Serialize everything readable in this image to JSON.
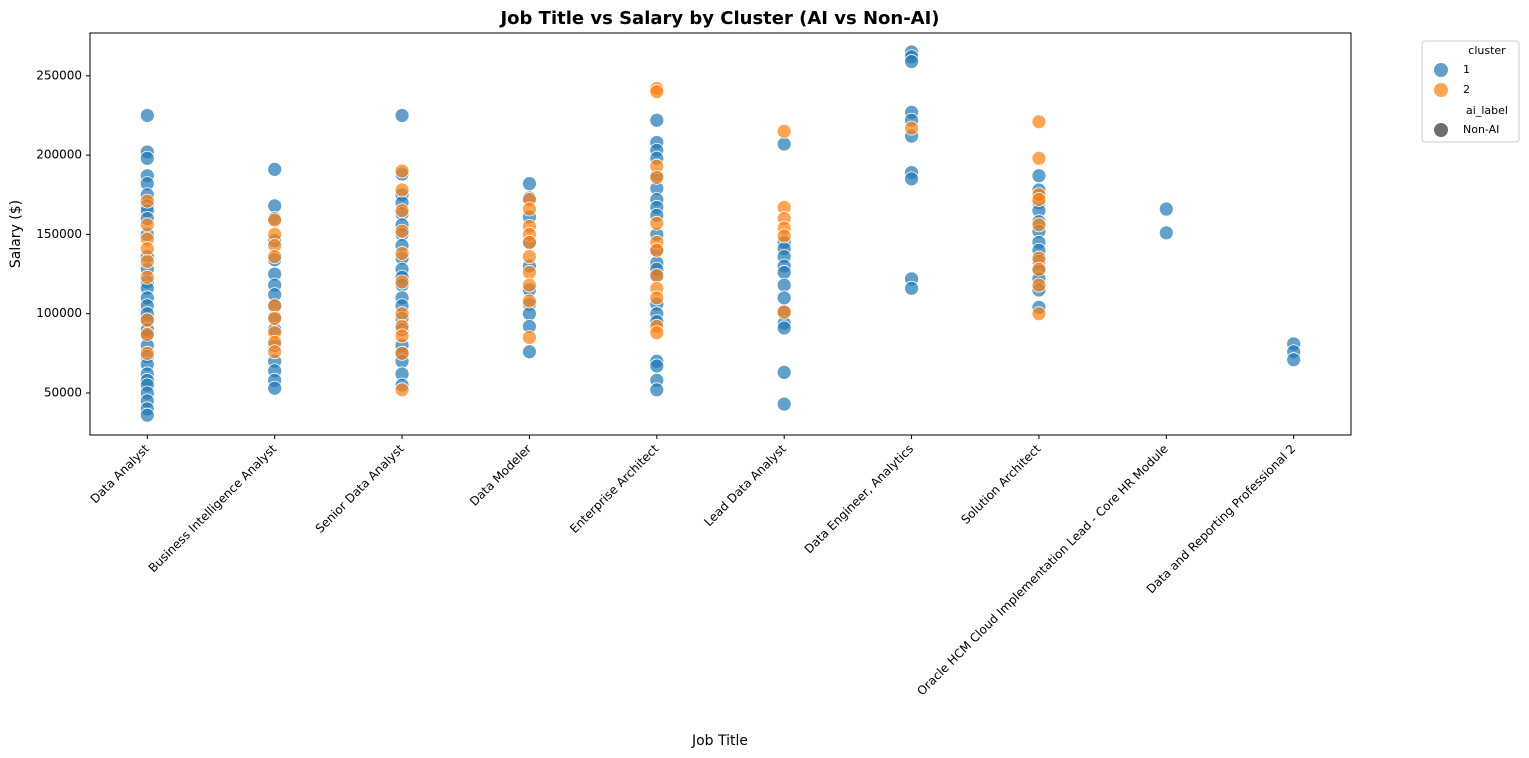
{
  "chart_data": {
    "type": "scatter",
    "title": "Job Title vs Salary by Cluster (AI vs Non-AI)",
    "x_label": "Job Title",
    "y_label": "Salary ($)",
    "categories": [
      "Data Analyst",
      "Business Intelligence Analyst",
      "Senior Data Analyst",
      "Data Modeler",
      "Enterprise Architect",
      "Lead Data Analyst",
      "Data Engineer, Analytics",
      "Solution Architect",
      "Oracle HCM Cloud Implementation Lead - Core HR Module",
      "Data and Reporting Professional 2"
    ],
    "ylim": [
      23500,
      277000
    ],
    "yticks": [
      50000,
      100000,
      150000,
      200000,
      250000
    ],
    "grid": false,
    "legend": {
      "position": "outside-upper-right",
      "hue_title": "cluster",
      "style_title": "ai_label",
      "style_entries": [
        "Non-AI"
      ],
      "style_color": "#6e6e6e"
    },
    "series": [
      {
        "name": "1",
        "color": "#1f77b4",
        "x": [
          "Data Analyst",
          "Data Analyst",
          "Data Analyst",
          "Data Analyst",
          "Data Analyst",
          "Data Analyst",
          "Data Analyst",
          "Data Analyst",
          "Data Analyst",
          "Data Analyst",
          "Data Analyst",
          "Data Analyst",
          "Data Analyst",
          "Data Analyst",
          "Data Analyst",
          "Data Analyst",
          "Data Analyst",
          "Data Analyst",
          "Data Analyst",
          "Data Analyst",
          "Data Analyst",
          "Data Analyst",
          "Data Analyst",
          "Data Analyst",
          "Data Analyst",
          "Data Analyst",
          "Data Analyst",
          "Data Analyst",
          "Data Analyst",
          "Data Analyst",
          "Business Intelligence Analyst",
          "Business Intelligence Analyst",
          "Business Intelligence Analyst",
          "Business Intelligence Analyst",
          "Business Intelligence Analyst",
          "Business Intelligence Analyst",
          "Business Intelligence Analyst",
          "Business Intelligence Analyst",
          "Business Intelligence Analyst",
          "Business Intelligence Analyst",
          "Business Intelligence Analyst",
          "Business Intelligence Analyst",
          "Business Intelligence Analyst",
          "Business Intelligence Analyst",
          "Business Intelligence Analyst",
          "Business Intelligence Analyst",
          "Senior Data Analyst",
          "Senior Data Analyst",
          "Senior Data Analyst",
          "Senior Data Analyst",
          "Senior Data Analyst",
          "Senior Data Analyst",
          "Senior Data Analyst",
          "Senior Data Analyst",
          "Senior Data Analyst",
          "Senior Data Analyst",
          "Senior Data Analyst",
          "Senior Data Analyst",
          "Senior Data Analyst",
          "Senior Data Analyst",
          "Senior Data Analyst",
          "Senior Data Analyst",
          "Senior Data Analyst",
          "Senior Data Analyst",
          "Senior Data Analyst",
          "Senior Data Analyst",
          "Senior Data Analyst",
          "Data Modeler",
          "Data Modeler",
          "Data Modeler",
          "Data Modeler",
          "Data Modeler",
          "Data Modeler",
          "Data Modeler",
          "Data Modeler",
          "Data Modeler",
          "Data Modeler",
          "Enterprise Architect",
          "Enterprise Architect",
          "Enterprise Architect",
          "Enterprise Architect",
          "Enterprise Architect",
          "Enterprise Architect",
          "Enterprise Architect",
          "Enterprise Architect",
          "Enterprise Architect",
          "Enterprise Architect",
          "Enterprise Architect",
          "Enterprise Architect",
          "Enterprise Architect",
          "Enterprise Architect",
          "Enterprise Architect",
          "Enterprise Architect",
          "Enterprise Architect",
          "Enterprise Architect",
          "Enterprise Architect",
          "Enterprise Architect",
          "Enterprise Architect",
          "Lead Data Analyst",
          "Lead Data Analyst",
          "Lead Data Analyst",
          "Lead Data Analyst",
          "Lead Data Analyst",
          "Lead Data Analyst",
          "Lead Data Analyst",
          "Lead Data Analyst",
          "Lead Data Analyst",
          "Lead Data Analyst",
          "Lead Data Analyst",
          "Lead Data Analyst",
          "Lead Data Analyst",
          "Data Engineer, Analytics",
          "Data Engineer, Analytics",
          "Data Engineer, Analytics",
          "Data Engineer, Analytics",
          "Data Engineer, Analytics",
          "Data Engineer, Analytics",
          "Data Engineer, Analytics",
          "Data Engineer, Analytics",
          "Data Engineer, Analytics",
          "Data Engineer, Analytics",
          "Solution Architect",
          "Solution Architect",
          "Solution Architect",
          "Solution Architect",
          "Solution Architect",
          "Solution Architect",
          "Solution Architect",
          "Solution Architect",
          "Solution Architect",
          "Solution Architect",
          "Solution Architect",
          "Solution Architect",
          "Solution Architect",
          "Oracle HCM Cloud Implementation Lead - Core HR Module",
          "Oracle HCM Cloud Implementation Lead - Core HR Module",
          "Data and Reporting Professional 2",
          "Data and Reporting Professional 2",
          "Data and Reporting Professional 2"
        ],
        "values": [
          225000,
          202000,
          198000,
          187000,
          182000,
          175000,
          168000,
          165000,
          160000,
          150000,
          136000,
          128000,
          120000,
          116000,
          110000,
          105000,
          100000,
          96000,
          90000,
          86000,
          80000,
          73000,
          68000,
          62000,
          58000,
          55000,
          50000,
          45000,
          40000,
          36000,
          191000,
          168000,
          160000,
          146000,
          134000,
          125000,
          118000,
          112000,
          105000,
          98000,
          90000,
          80000,
          70000,
          64000,
          58000,
          53000,
          225000,
          188000,
          175000,
          170000,
          163000,
          156000,
          150000,
          143000,
          135000,
          128000,
          123000,
          118000,
          110000,
          105000,
          97000,
          90000,
          80000,
          75000,
          70000,
          62000,
          55000,
          182000,
          173000,
          161000,
          145000,
          130000,
          115000,
          106000,
          100000,
          92000,
          76000,
          222000,
          208000,
          203000,
          198000,
          187000,
          179000,
          172000,
          167000,
          162000,
          150000,
          140000,
          132000,
          128000,
          124000,
          106000,
          100000,
          95000,
          70000,
          67000,
          58000,
          52000,
          207000,
          145000,
          141000,
          136000,
          130000,
          126000,
          118000,
          110000,
          101000,
          94000,
          91000,
          63000,
          43000,
          265000,
          262000,
          259000,
          227000,
          222000,
          212000,
          189000,
          185000,
          122000,
          116000,
          187000,
          178000,
          170000,
          165000,
          158000,
          152000,
          145000,
          140000,
          133000,
          127000,
          122000,
          115000,
          104000,
          166000,
          151000,
          81000,
          76000,
          71000
        ]
      },
      {
        "name": "2",
        "color": "#ff7f0e",
        "x": [
          "Data Analyst",
          "Data Analyst",
          "Data Analyst",
          "Data Analyst",
          "Data Analyst",
          "Data Analyst",
          "Data Analyst",
          "Data Analyst",
          "Data Analyst",
          "Business Intelligence Analyst",
          "Business Intelligence Analyst",
          "Business Intelligence Analyst",
          "Business Intelligence Analyst",
          "Business Intelligence Analyst",
          "Business Intelligence Analyst",
          "Business Intelligence Analyst",
          "Business Intelligence Analyst",
          "Business Intelligence Analyst",
          "Senior Data Analyst",
          "Senior Data Analyst",
          "Senior Data Analyst",
          "Senior Data Analyst",
          "Senior Data Analyst",
          "Senior Data Analyst",
          "Senior Data Analyst",
          "Senior Data Analyst",
          "Senior Data Analyst",
          "Senior Data Analyst",
          "Senior Data Analyst",
          "Data Modeler",
          "Data Modeler",
          "Data Modeler",
          "Data Modeler",
          "Data Modeler",
          "Data Modeler",
          "Data Modeler",
          "Data Modeler",
          "Data Modeler",
          "Data Modeler",
          "Enterprise Architect",
          "Enterprise Architect",
          "Enterprise Architect",
          "Enterprise Architect",
          "Enterprise Architect",
          "Enterprise Architect",
          "Enterprise Architect",
          "Enterprise Architect",
          "Enterprise Architect",
          "Enterprise Architect",
          "Enterprise Architect",
          "Enterprise Architect",
          "Lead Data Analyst",
          "Lead Data Analyst",
          "Lead Data Analyst",
          "Lead Data Analyst",
          "Lead Data Analyst",
          "Lead Data Analyst",
          "Data Engineer, Analytics",
          "Solution Architect",
          "Solution Architect",
          "Solution Architect",
          "Solution Architect",
          "Solution Architect",
          "Solution Architect",
          "Solution Architect",
          "Solution Architect",
          "Solution Architect"
        ],
        "values": [
          171000,
          156000,
          147000,
          141000,
          133000,
          123000,
          96000,
          87000,
          75000,
          159000,
          150000,
          143000,
          136000,
          105000,
          97000,
          88000,
          82000,
          76000,
          190000,
          178000,
          165000,
          152000,
          138000,
          120000,
          100000,
          92000,
          86000,
          75000,
          52000,
          172000,
          166000,
          155000,
          150000,
          145000,
          136000,
          126000,
          118000,
          108000,
          85000,
          242000,
          240000,
          193000,
          186000,
          157000,
          145000,
          140000,
          124000,
          116000,
          110000,
          92000,
          88000,
          215000,
          167000,
          160000,
          154000,
          149000,
          101000,
          217000,
          221000,
          198000,
          175000,
          172000,
          156000,
          135000,
          128000,
          118000,
          100000
        ]
      }
    ]
  }
}
